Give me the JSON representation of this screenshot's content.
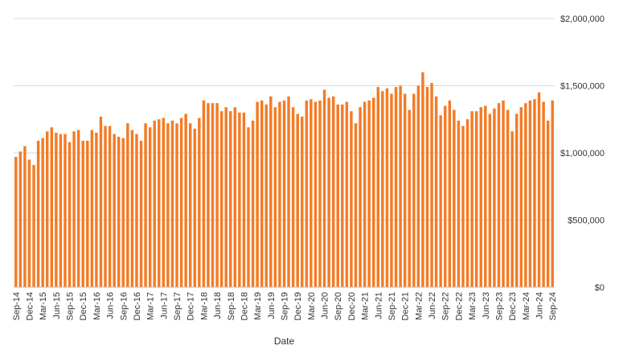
{
  "chart_data": {
    "type": "bar",
    "xlabel": "Date",
    "ylabel": "",
    "ylim": [
      0,
      2000000
    ],
    "yticks": [
      0,
      500000,
      1000000,
      1500000,
      2000000
    ],
    "ytick_labels": [
      "$0",
      "$500,000",
      "$1,000,000",
      "$1,500,000",
      "$2,000,000"
    ],
    "y_axis_position": "right",
    "grid": "horizontal",
    "legend": "none",
    "bar_color": "#F47B25",
    "x_tick_labels": [
      "Sep-14",
      "Dec-14",
      "Mar-15",
      "Jun-15",
      "Sep-15",
      "Dec-15",
      "Mar-16",
      "Jun-16",
      "Sep-16",
      "Dec-16",
      "Mar-17",
      "Jun-17",
      "Sep-17",
      "Dec-17",
      "Mar-18",
      "Jun-18",
      "Sep-18",
      "Dec-18",
      "Mar-19",
      "Jun-19",
      "Sep-19",
      "Dec-19",
      "Mar-20",
      "Jun-20",
      "Sep-20",
      "Dec-20",
      "Mar-21",
      "Jun-21",
      "Sep-21",
      "Dec-21",
      "Mar-22",
      "Jun-22",
      "Sep-22",
      "Dec-22",
      "Mar-23",
      "Jun-23",
      "Sep-23",
      "Dec-23",
      "Mar-24",
      "Jun-24",
      "Sep-24"
    ],
    "categories": [
      "Sep-14",
      "Oct-14",
      "Nov-14",
      "Dec-14",
      "Jan-15",
      "Feb-15",
      "Mar-15",
      "Apr-15",
      "May-15",
      "Jun-15",
      "Jul-15",
      "Aug-15",
      "Sep-15",
      "Oct-15",
      "Nov-15",
      "Dec-15",
      "Jan-16",
      "Feb-16",
      "Mar-16",
      "Apr-16",
      "May-16",
      "Jun-16",
      "Jul-16",
      "Aug-16",
      "Sep-16",
      "Oct-16",
      "Nov-16",
      "Dec-16",
      "Jan-17",
      "Feb-17",
      "Mar-17",
      "Apr-17",
      "May-17",
      "Jun-17",
      "Jul-17",
      "Aug-17",
      "Sep-17",
      "Oct-17",
      "Nov-17",
      "Dec-17",
      "Jan-18",
      "Feb-18",
      "Mar-18",
      "Apr-18",
      "May-18",
      "Jun-18",
      "Jul-18",
      "Aug-18",
      "Sep-18",
      "Oct-18",
      "Nov-18",
      "Dec-18",
      "Jan-19",
      "Feb-19",
      "Mar-19",
      "Apr-19",
      "May-19",
      "Jun-19",
      "Jul-19",
      "Aug-19",
      "Sep-19",
      "Oct-19",
      "Nov-19",
      "Dec-19",
      "Jan-20",
      "Feb-20",
      "Mar-20",
      "Apr-20",
      "May-20",
      "Jun-20",
      "Jul-20",
      "Aug-20",
      "Sep-20",
      "Oct-20",
      "Nov-20",
      "Dec-20",
      "Jan-21",
      "Feb-21",
      "Mar-21",
      "Apr-21",
      "May-21",
      "Jun-21",
      "Jul-21",
      "Aug-21",
      "Sep-21",
      "Oct-21",
      "Nov-21",
      "Dec-21",
      "Jan-22",
      "Feb-22",
      "Mar-22",
      "Apr-22",
      "May-22",
      "Jun-22",
      "Jul-22",
      "Aug-22",
      "Sep-22",
      "Oct-22",
      "Nov-22",
      "Dec-22",
      "Jan-23",
      "Feb-23",
      "Mar-23",
      "Apr-23",
      "May-23",
      "Jun-23",
      "Jul-23",
      "Aug-23",
      "Sep-23",
      "Oct-23",
      "Nov-23",
      "Dec-23",
      "Jan-24",
      "Feb-24",
      "Mar-24",
      "Apr-24",
      "May-24",
      "Jun-24",
      "Jul-24",
      "Aug-24",
      "Sep-24"
    ],
    "values": [
      970000,
      1010000,
      1050000,
      950000,
      910000,
      1090000,
      1110000,
      1160000,
      1190000,
      1150000,
      1140000,
      1140000,
      1080000,
      1160000,
      1170000,
      1090000,
      1090000,
      1170000,
      1150000,
      1270000,
      1200000,
      1200000,
      1140000,
      1120000,
      1110000,
      1220000,
      1170000,
      1140000,
      1090000,
      1220000,
      1190000,
      1240000,
      1250000,
      1260000,
      1220000,
      1240000,
      1220000,
      1260000,
      1290000,
      1220000,
      1180000,
      1260000,
      1390000,
      1370000,
      1370000,
      1370000,
      1310000,
      1340000,
      1310000,
      1340000,
      1300000,
      1300000,
      1190000,
      1240000,
      1380000,
      1390000,
      1360000,
      1420000,
      1340000,
      1380000,
      1390000,
      1420000,
      1340000,
      1290000,
      1270000,
      1390000,
      1400000,
      1380000,
      1390000,
      1470000,
      1410000,
      1420000,
      1360000,
      1360000,
      1380000,
      1310000,
      1220000,
      1340000,
      1380000,
      1390000,
      1410000,
      1490000,
      1460000,
      1480000,
      1440000,
      1490000,
      1500000,
      1440000,
      1320000,
      1440000,
      1500000,
      1600000,
      1490000,
      1520000,
      1420000,
      1280000,
      1350000,
      1390000,
      1320000,
      1240000,
      1200000,
      1250000,
      1310000,
      1310000,
      1340000,
      1350000,
      1290000,
      1330000,
      1370000,
      1390000,
      1320000,
      1160000,
      1290000,
      1340000,
      1370000,
      1390000,
      1400000,
      1450000,
      1380000,
      1240000,
      1390000
    ]
  }
}
